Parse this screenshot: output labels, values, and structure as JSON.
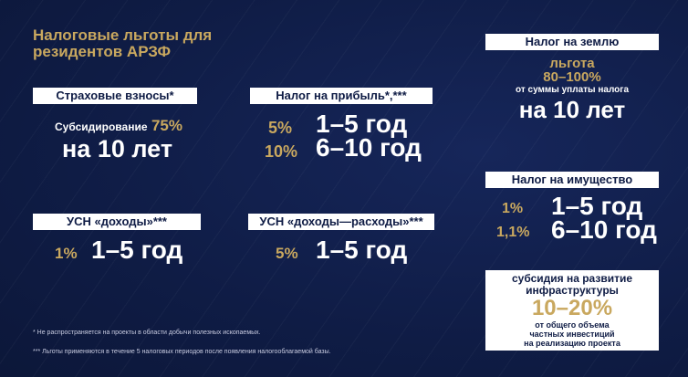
{
  "title": {
    "line1": "Налоговые льготы для",
    "line2": "резидентов АРЗФ"
  },
  "insurance": {
    "label": "Страховые взносы*",
    "line1_text": "Субсидирование",
    "line1_pct": "75%",
    "line2": "на 10 лет"
  },
  "profit": {
    "label": "Налог на прибыль*,***",
    "rows": [
      {
        "pct": "5%",
        "term": "1–5 год"
      },
      {
        "pct": "10%",
        "term": "6–10 год"
      }
    ]
  },
  "usn_income": {
    "label": "УСН «доходы»***",
    "pct": "1%",
    "term": "1–5 год"
  },
  "usn_income_expense": {
    "label": "УСН «доходы—расходы»***",
    "pct": "5%",
    "term": "1–5 год"
  },
  "land": {
    "label": "Налог на землю",
    "line1": "льгота",
    "line2": "80–100%",
    "line3": "от суммы уплаты налога",
    "line4": "на 10 лет"
  },
  "property": {
    "label": "Налог на имущество",
    "rows": [
      {
        "pct": "1%",
        "term": "1–5 год"
      },
      {
        "pct": "1,1%",
        "term": "6–10 год"
      }
    ]
  },
  "infra": {
    "line1": "субсидия на развитие",
    "line2": "инфраструктуры",
    "pct": "10–20%",
    "line3": "от общего объема",
    "line4": "частных инвестиций",
    "line5": "на реализацию проекта"
  },
  "footnotes": [
    "* Не распространяется на проекты в области добычи полезных ископаемых.",
    "*** Льготы применяются в течение 5 налоговых периодов после появления налогооблагаемой базы."
  ],
  "colors": {
    "background": "#0f1c45",
    "accent": "#c9a85f",
    "text": "#ffffff"
  }
}
